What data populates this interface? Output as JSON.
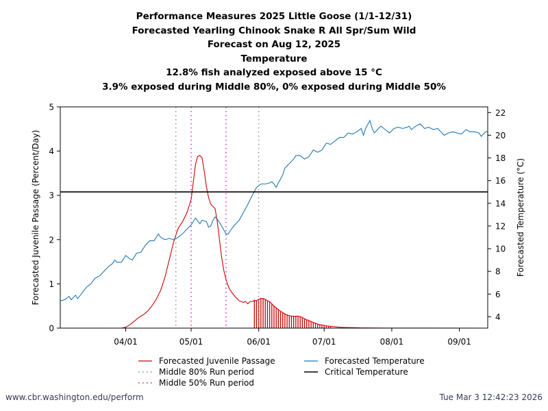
{
  "chart_data": {
    "type": "line",
    "title": [
      "Performance Measures 2025 Little Goose (1/1-12/31)",
      "Forecasted Yearling Chinook Snake R All Spr/Sum Wild",
      "Forecast on Aug 12, 2025",
      "Temperature",
      "12.8% fish analyzed exposed above 15 °C",
      "3.9% exposed during Middle 80%, 0% exposed during Middle 50%"
    ],
    "ylabel": "Forecasted Juvenile Passage (Percent/Day)",
    "y2label": "Forecasted Temperature (°C)",
    "ylim": [
      0,
      5
    ],
    "y2lim": [
      3,
      22.5
    ],
    "yticks": [
      0,
      1,
      2,
      3,
      4,
      5
    ],
    "y2ticks": [
      4,
      6,
      8,
      10,
      12,
      14,
      16,
      18,
      20,
      22
    ],
    "xlim_day": [
      60,
      256
    ],
    "xticks": [
      {
        "label": "04/01",
        "day": 90
      },
      {
        "label": "05/01",
        "day": 120
      },
      {
        "label": "06/01",
        "day": 151
      },
      {
        "label": "07/01",
        "day": 181
      },
      {
        "label": "08/01",
        "day": 212
      },
      {
        "label": "09/01",
        "day": 243
      }
    ],
    "critical_temperature_c": 15,
    "middle80_days": [
      113,
      151
    ],
    "middle50_days": [
      120,
      136
    ],
    "passage_series": {
      "name": "Forecasted Juvenile Passage",
      "color": "#cc0000",
      "points": [
        [
          88,
          0.0
        ],
        [
          90,
          0.02
        ],
        [
          92,
          0.08
        ],
        [
          94,
          0.16
        ],
        [
          96,
          0.24
        ],
        [
          98,
          0.3
        ],
        [
          100,
          0.38
        ],
        [
          102,
          0.5
        ],
        [
          104,
          0.65
        ],
        [
          106,
          0.85
        ],
        [
          108,
          1.15
        ],
        [
          110,
          1.55
        ],
        [
          112,
          1.95
        ],
        [
          114,
          2.25
        ],
        [
          116,
          2.4
        ],
        [
          118,
          2.6
        ],
        [
          120,
          2.9
        ],
        [
          121,
          3.3
        ],
        [
          122,
          3.7
        ],
        [
          123,
          3.88
        ],
        [
          124,
          3.9
        ],
        [
          125,
          3.85
        ],
        [
          126,
          3.55
        ],
        [
          127,
          3.2
        ],
        [
          128,
          2.95
        ],
        [
          129,
          2.8
        ],
        [
          130,
          2.75
        ],
        [
          131,
          2.7
        ],
        [
          132,
          2.4
        ],
        [
          133,
          2.0
        ],
        [
          134,
          1.6
        ],
        [
          135,
          1.3
        ],
        [
          136,
          1.1
        ],
        [
          137,
          0.95
        ],
        [
          138,
          0.85
        ],
        [
          140,
          0.72
        ],
        [
          142,
          0.62
        ],
        [
          144,
          0.58
        ],
        [
          145,
          0.6
        ],
        [
          146,
          0.55
        ],
        [
          147,
          0.6
        ],
        [
          148,
          0.6
        ],
        [
          149,
          0.63
        ],
        [
          150,
          0.62
        ],
        [
          151,
          0.65
        ],
        [
          152,
          0.67
        ],
        [
          153,
          0.67
        ],
        [
          154,
          0.65
        ],
        [
          155,
          0.62
        ],
        [
          156,
          0.6
        ],
        [
          157,
          0.55
        ],
        [
          158,
          0.5
        ],
        [
          159,
          0.46
        ],
        [
          160,
          0.42
        ],
        [
          161,
          0.38
        ],
        [
          162,
          0.35
        ],
        [
          163,
          0.32
        ],
        [
          164,
          0.3
        ],
        [
          165,
          0.28
        ],
        [
          166,
          0.27
        ],
        [
          167,
          0.27
        ],
        [
          168,
          0.27
        ],
        [
          169,
          0.27
        ],
        [
          170,
          0.26
        ],
        [
          171,
          0.24
        ],
        [
          172,
          0.21
        ],
        [
          173,
          0.19
        ],
        [
          174,
          0.17
        ],
        [
          175,
          0.15
        ],
        [
          176,
          0.13
        ],
        [
          177,
          0.11
        ],
        [
          178,
          0.09
        ],
        [
          179,
          0.08
        ],
        [
          180,
          0.07
        ],
        [
          181,
          0.06
        ],
        [
          182,
          0.05
        ],
        [
          184,
          0.04
        ],
        [
          186,
          0.03
        ],
        [
          188,
          0.02
        ],
        [
          190,
          0.015
        ],
        [
          192,
          0.012
        ],
        [
          194,
          0.01
        ],
        [
          196,
          0.008
        ],
        [
          198,
          0.006
        ],
        [
          200,
          0.005
        ],
        [
          205,
          0.003
        ],
        [
          210,
          0.002
        ],
        [
          215,
          0.001
        ],
        [
          220,
          0.0005
        ],
        [
          256,
          0.0
        ]
      ]
    },
    "temperature_series": {
      "name": "Forecasted Temperature",
      "color": "#1f77b4",
      "points": [
        [
          60,
          5.4
        ],
        [
          62,
          5.5
        ],
        [
          64,
          5.8
        ],
        [
          65,
          5.5
        ],
        [
          67,
          5.9
        ],
        [
          68,
          5.6
        ],
        [
          70,
          6.1
        ],
        [
          72,
          6.6
        ],
        [
          74,
          6.9
        ],
        [
          76,
          7.4
        ],
        [
          78,
          7.6
        ],
        [
          80,
          8.0
        ],
        [
          82,
          8.4
        ],
        [
          84,
          8.7
        ],
        [
          85,
          9.0
        ],
        [
          86,
          8.8
        ],
        [
          88,
          8.8
        ],
        [
          90,
          9.4
        ],
        [
          92,
          9.1
        ],
        [
          93,
          9.0
        ],
        [
          95,
          9.6
        ],
        [
          97,
          9.7
        ],
        [
          99,
          10.3
        ],
        [
          101,
          10.7
        ],
        [
          103,
          10.7
        ],
        [
          105,
          11.3
        ],
        [
          106,
          11.0
        ],
        [
          108,
          10.8
        ],
        [
          110,
          10.9
        ],
        [
          112,
          10.8
        ],
        [
          114,
          11.0
        ],
        [
          116,
          11.3
        ],
        [
          118,
          11.7
        ],
        [
          120,
          12.1
        ],
        [
          122,
          12.7
        ],
        [
          124,
          12.2
        ],
        [
          125,
          12.5
        ],
        [
          127,
          12.4
        ],
        [
          128,
          11.9
        ],
        [
          129,
          12.0
        ],
        [
          130,
          12.5
        ],
        [
          131,
          12.8
        ],
        [
          132,
          12.6
        ],
        [
          134,
          12.0
        ],
        [
          136,
          11.3
        ],
        [
          137,
          11.3
        ],
        [
          138,
          11.6
        ],
        [
          140,
          12.1
        ],
        [
          142,
          12.5
        ],
        [
          144,
          13.2
        ],
        [
          146,
          13.9
        ],
        [
          148,
          14.7
        ],
        [
          150,
          15.4
        ],
        [
          152,
          15.7
        ],
        [
          154,
          15.7
        ],
        [
          156,
          15.8
        ],
        [
          157,
          15.9
        ],
        [
          158,
          15.7
        ],
        [
          159,
          15.4
        ],
        [
          160,
          15.8
        ],
        [
          162,
          16.5
        ],
        [
          163,
          17.1
        ],
        [
          165,
          17.5
        ],
        [
          167,
          17.9
        ],
        [
          168,
          18.2
        ],
        [
          170,
          18.2
        ],
        [
          172,
          17.9
        ],
        [
          174,
          18.1
        ],
        [
          176,
          18.7
        ],
        [
          178,
          18.5
        ],
        [
          180,
          18.7
        ],
        [
          182,
          19.3
        ],
        [
          184,
          19.2
        ],
        [
          186,
          19.5
        ],
        [
          188,
          19.8
        ],
        [
          190,
          19.8
        ],
        [
          192,
          20.2
        ],
        [
          194,
          20.1
        ],
        [
          196,
          20.3
        ],
        [
          198,
          20.6
        ],
        [
          199,
          20.0
        ],
        [
          200,
          20.6
        ],
        [
          202,
          21.3
        ],
        [
          203,
          20.6
        ],
        [
          204,
          20.2
        ],
        [
          205,
          20.4
        ],
        [
          207,
          20.8
        ],
        [
          209,
          20.5
        ],
        [
          211,
          20.2
        ],
        [
          213,
          20.6
        ],
        [
          215,
          20.7
        ],
        [
          217,
          20.6
        ],
        [
          219,
          20.7
        ],
        [
          220,
          20.8
        ],
        [
          221,
          20.5
        ],
        [
          223,
          20.8
        ],
        [
          225,
          21.0
        ],
        [
          227,
          20.6
        ],
        [
          229,
          20.7
        ],
        [
          231,
          20.5
        ],
        [
          233,
          20.6
        ],
        [
          235,
          20.2
        ],
        [
          236,
          20.0
        ],
        [
          238,
          20.2
        ],
        [
          240,
          20.3
        ],
        [
          242,
          20.2
        ],
        [
          244,
          20.1
        ],
        [
          246,
          20.5
        ],
        [
          248,
          20.3
        ],
        [
          250,
          20.3
        ],
        [
          252,
          20.2
        ],
        [
          253,
          19.9
        ],
        [
          254,
          20.1
        ],
        [
          255,
          20.3
        ],
        [
          256,
          20.3
        ]
      ]
    },
    "exposure_window_days": [
      149,
      184
    ],
    "legend": [
      {
        "label": "Forecasted Juvenile Passage",
        "style": "line",
        "color": "#cc0000"
      },
      {
        "label": "Forecasted Temperature",
        "style": "line",
        "color": "#1f77b4"
      },
      {
        "label": "Middle 80% Run period",
        "style": "dotted",
        "color": "#7f7f7f"
      },
      {
        "label": "Critical Temperature",
        "style": "line",
        "color": "#000000"
      },
      {
        "label": "Middle 50% Run period",
        "style": "dotted",
        "color": "#cc00cc"
      }
    ]
  },
  "footer": {
    "source": "www.cbr.washington.edu/perform",
    "timestamp": "Tue Mar  3 12:42:23 2026"
  }
}
